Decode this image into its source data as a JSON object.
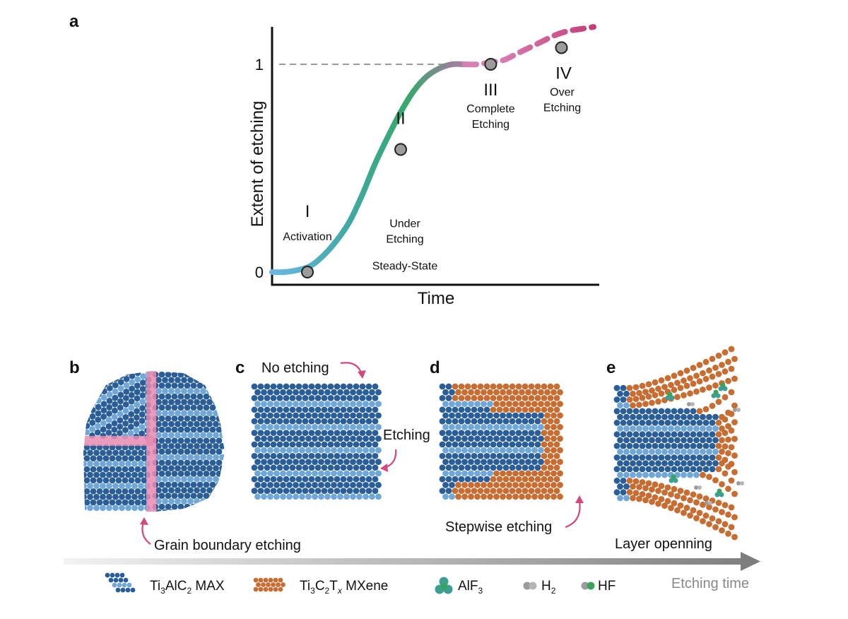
{
  "panel_a": {
    "label": "a",
    "chart_data": {
      "type": "line",
      "title": "",
      "xlabel": "Time",
      "ylabel": "Extent of etching",
      "x_range": [
        0,
        100
      ],
      "ylim": [
        0,
        1.15
      ],
      "y_ticks": [
        "0",
        "1"
      ],
      "reference_line": {
        "y": 1,
        "style": "dashed"
      },
      "series": [
        {
          "name": "etching curve",
          "x": [
            0,
            4,
            8,
            12,
            16,
            20,
            24,
            28,
            32,
            36,
            40,
            44,
            48,
            52,
            56,
            60,
            64,
            68,
            72,
            76,
            80,
            84,
            88,
            92,
            96,
            100
          ],
          "y": [
            0.0,
            0.0,
            0.01,
            0.03,
            0.08,
            0.15,
            0.24,
            0.37,
            0.52,
            0.65,
            0.77,
            0.87,
            0.94,
            0.98,
            1.0,
            1.0,
            1.0,
            1.01,
            1.02,
            1.05,
            1.08,
            1.11,
            1.14,
            1.16,
            1.17,
            1.18
          ],
          "segments": [
            {
              "from": 0,
              "to": 62,
              "style": "solid",
              "colors": [
                "#6ab7e6",
                "#3fa9a0",
                "#36a86b",
                "#9a7f9c",
                "#d58ab8"
              ]
            },
            {
              "from": 62,
              "to": 100,
              "style": "dashed",
              "colors": [
                "#d87fb6",
                "#c3336f"
              ]
            }
          ]
        }
      ],
      "stage_points": [
        {
          "x": 11,
          "y": 0.0,
          "roman": "I",
          "label_lines": [
            "Activation"
          ]
        },
        {
          "x": 40,
          "y": 0.59,
          "roman": "II",
          "label_lines": [
            "Under",
            "Etching",
            "Steady-State"
          ]
        },
        {
          "x": 68,
          "y": 1.0,
          "roman": "III",
          "label_lines": [
            "Complete",
            "Etching"
          ]
        },
        {
          "x": 90,
          "y": 1.08,
          "roman": "IV",
          "label_lines": [
            "Over",
            "Etching"
          ]
        }
      ]
    }
  },
  "panel_b": {
    "label": "b",
    "caption": "Grain boundary etching"
  },
  "panel_c": {
    "label": "c",
    "top_caption": "No etching",
    "side_caption": "Etching"
  },
  "panel_d": {
    "label": "d",
    "caption": "Stepwise etching"
  },
  "panel_e": {
    "label": "e",
    "caption": "Layer openning"
  },
  "timeline": {
    "label": "Etching time"
  },
  "legend": [
    {
      "key": "max",
      "text": "Ti",
      "sub1": "3",
      "mid": "AlC",
      "sub2": "2",
      "tail": " MAX"
    },
    {
      "key": "mxene",
      "text": "Ti",
      "sub1": "3",
      "mid": "C",
      "sub2": "2",
      "mid2": "T",
      "sub3": "x",
      "tail": " MXene"
    },
    {
      "key": "alf3",
      "text": "AlF",
      "sub1": "3"
    },
    {
      "key": "h2",
      "text": "H",
      "sub1": "2"
    },
    {
      "key": "hf",
      "text": "HF"
    }
  ],
  "colors": {
    "max_dark": "#2a5e99",
    "max_light": "#6fa7d8",
    "mxene": "#c86d32",
    "pink": "#d2497f",
    "pink_band": "#e88bb0",
    "axis": "#111111",
    "arrow_gray": "#777777",
    "molecule_teal": "#3d9e93",
    "molecule_green": "#3aa35b",
    "molecule_gray": "#9b9b9b"
  }
}
